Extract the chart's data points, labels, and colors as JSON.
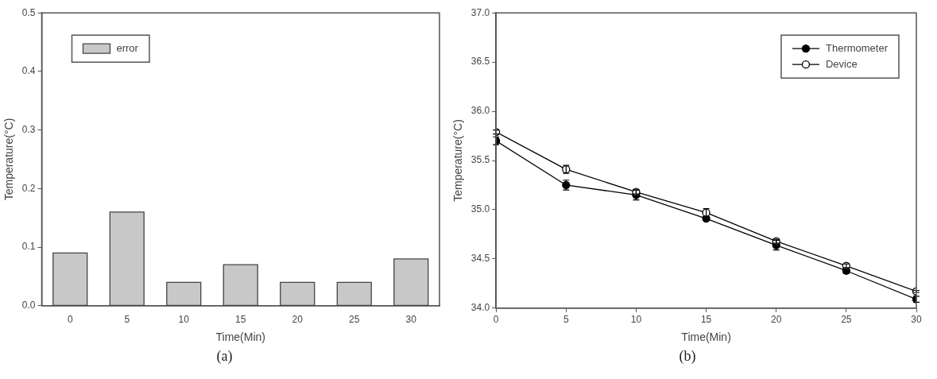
{
  "chart_data": [
    {
      "type": "bar",
      "ylabel": "Temperature(°C)",
      "xlabel": "Time(Min)",
      "categories": [
        "0",
        "5",
        "10",
        "15",
        "20",
        "25",
        "30"
      ],
      "series": [
        {
          "name": "error",
          "color": "#c8c8c8",
          "values": [
            0.09,
            0.16,
            0.04,
            0.07,
            0.04,
            0.04,
            0.08
          ]
        }
      ],
      "ylim": [
        0,
        0.5
      ],
      "yticks": [
        {
          "value": 0,
          "label": "0.0"
        },
        0.1,
        0.2,
        0.3,
        0.4,
        0.5
      ],
      "grid": false,
      "legend": "top left",
      "annotations": [
        "(a)"
      ]
    },
    {
      "type": "line",
      "ylabel": "Temperature(°C)",
      "xlabel": "Time(Min)",
      "x": [
        0,
        5,
        10,
        15,
        20,
        25,
        30
      ],
      "series": [
        {
          "name": "Thermometer",
          "color": "#000000",
          "values": [
            35.7,
            35.25,
            35.15,
            34.91,
            34.64,
            34.38,
            34.09
          ],
          "errors": [
            0.04,
            0.05,
            0.05,
            0.02,
            0.05,
            0.03,
            0.03
          ]
        },
        {
          "name": "Device",
          "color": "#000000",
          "values": [
            35.79,
            35.41,
            35.18,
            34.97,
            34.68,
            34.43,
            34.17
          ],
          "errors": [
            0.02,
            0.04,
            0.02,
            0.04,
            0.02,
            0.02,
            0.01
          ]
        }
      ],
      "xlim": [
        0,
        30
      ],
      "xticks": [
        0,
        5,
        10,
        15,
        20,
        25,
        30
      ],
      "ylim": [
        34,
        37
      ],
      "yticks": [
        {
          "value": 34,
          "label": "34.0"
        },
        34.5,
        {
          "value": 35,
          "label": "35.0"
        },
        35.5,
        {
          "value": 36,
          "label": "36.0"
        },
        36.5,
        {
          "value": 37,
          "label": "37.0"
        }
      ],
      "grid": false,
      "legend": "top right",
      "marker": "circle",
      "line_style": "solid",
      "annotations": [
        "(b)"
      ]
    }
  ]
}
